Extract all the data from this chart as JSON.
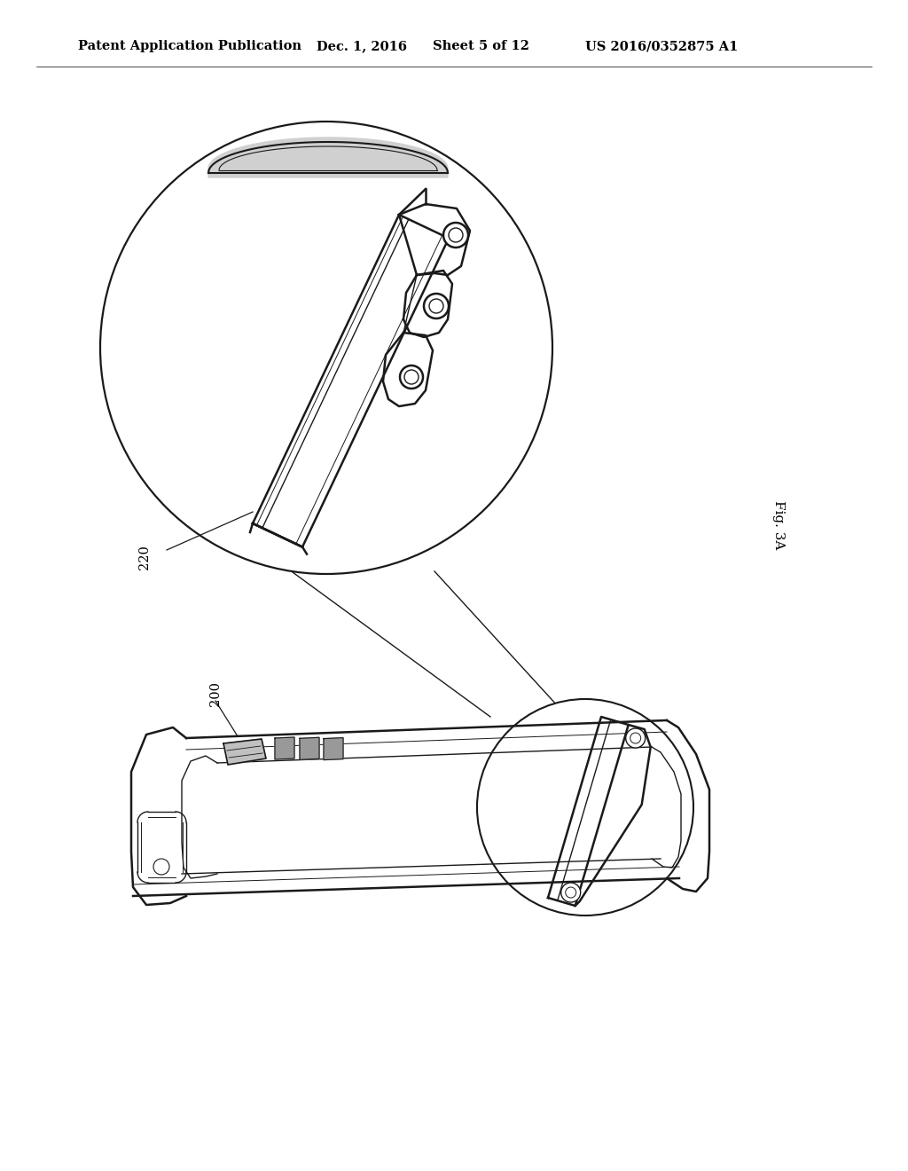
{
  "background_color": "#ffffff",
  "header_left": "Patent Application Publication",
  "header_date": "Dec. 1, 2016",
  "header_sheet": "Sheet 5 of 12",
  "header_right": "US 2016/0352875 A1",
  "fig_label": "Fig. 3A",
  "label_220": "220",
  "label_200": "200",
  "line_color": "#1a1a1a",
  "lw_main": 1.8,
  "lw_inner": 1.0,
  "lw_thin": 0.7
}
